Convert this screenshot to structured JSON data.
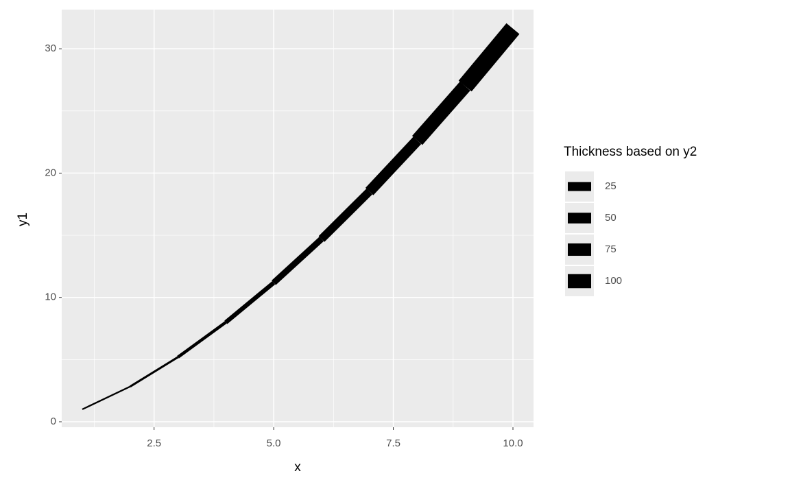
{
  "chart_data": {
    "type": "line",
    "x_label": "x",
    "y_label": "y1",
    "x": [
      1,
      2,
      3,
      4,
      5,
      6,
      7,
      8,
      9,
      10
    ],
    "values": [
      1,
      2.83,
      5.2,
      8,
      11.18,
      14.7,
      18.52,
      22.63,
      27,
      31.62
    ],
    "linewidth_values": [
      1,
      4,
      9,
      16,
      25,
      36,
      49,
      64,
      81,
      100
    ],
    "color": "#000000",
    "xlim": [
      0.57,
      10.43
    ],
    "ylim": [
      -0.44,
      33.15
    ],
    "xticks": [
      2.5,
      {
        "value": 5,
        "label": "5.0"
      },
      7.5,
      {
        "value": 10,
        "label": "10.0"
      }
    ],
    "yticks": [
      0,
      10,
      20,
      30
    ],
    "grid": true,
    "legend": {
      "title": "Thickness based on y2",
      "values": [
        25,
        50,
        75,
        100
      ]
    }
  }
}
